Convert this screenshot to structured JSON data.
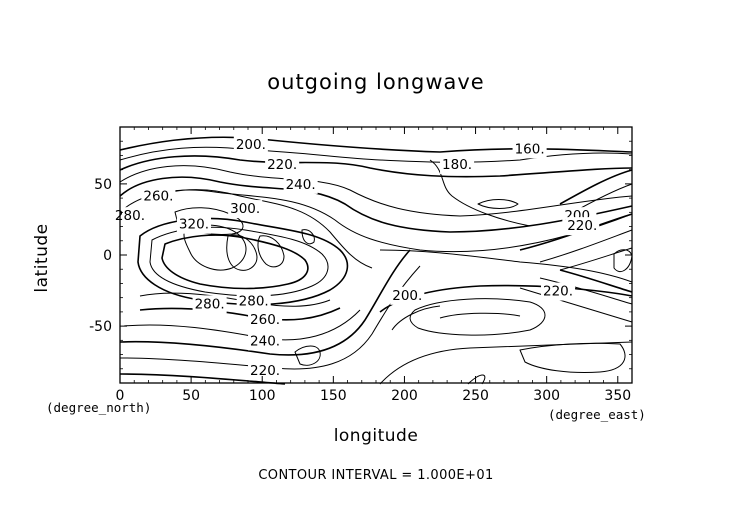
{
  "chart_data": {
    "type": "contour",
    "title": "outgoing longwave",
    "xlabel": "longitude",
    "ylabel": "latitude",
    "x_units": "(degree_east)",
    "y_units": "(degree_north)",
    "xlim": [
      0,
      360
    ],
    "ylim": [
      -90,
      90
    ],
    "x_ticks": [
      {
        "value": 0,
        "label": "0"
      },
      {
        "value": 50,
        "label": "50"
      },
      {
        "value": 100,
        "label": "100"
      },
      {
        "value": 150,
        "label": "150"
      },
      {
        "value": 200,
        "label": "200"
      },
      {
        "value": 250,
        "label": "250"
      },
      {
        "value": 300,
        "label": "300"
      },
      {
        "value": 350,
        "label": "350"
      }
    ],
    "y_ticks": [
      {
        "value": 50,
        "label": "50"
      },
      {
        "value": 0,
        "label": "0"
      },
      {
        "value": -50,
        "label": "-50"
      }
    ],
    "contour_interval": 10,
    "footnote": "CONTOUR INTERVAL = 1.000E+01",
    "contour_labels": [
      {
        "text": "160.",
        "lon": 288,
        "lat": 75
      },
      {
        "text": "180.",
        "lon": 237,
        "lat": 64
      },
      {
        "text": "200.",
        "lon": 92,
        "lat": 78
      },
      {
        "text": "220.",
        "lon": 114,
        "lat": 64
      },
      {
        "text": "240.",
        "lon": 127,
        "lat": 50
      },
      {
        "text": "260.",
        "lon": 27,
        "lat": 42
      },
      {
        "text": "280.",
        "lon": 7,
        "lat": 28
      },
      {
        "text": "300.",
        "lon": 88,
        "lat": 33
      },
      {
        "text": "320.",
        "lon": 52,
        "lat": 22
      },
      {
        "text": "200.",
        "lon": 323,
        "lat": 28
      },
      {
        "text": "220.",
        "lon": 325,
        "lat": 21
      },
      {
        "text": "200.",
        "lon": 202,
        "lat": -28
      },
      {
        "text": "220.",
        "lon": 308,
        "lat": -25
      },
      {
        "text": "280.",
        "lon": 63,
        "lat": -34
      },
      {
        "text": "280.",
        "lon": 94,
        "lat": -32
      },
      {
        "text": "260.",
        "lon": 102,
        "lat": -45
      },
      {
        "text": "240.",
        "lon": 102,
        "lat": -60
      },
      {
        "text": "220.",
        "lon": 102,
        "lat": -81
      }
    ]
  }
}
